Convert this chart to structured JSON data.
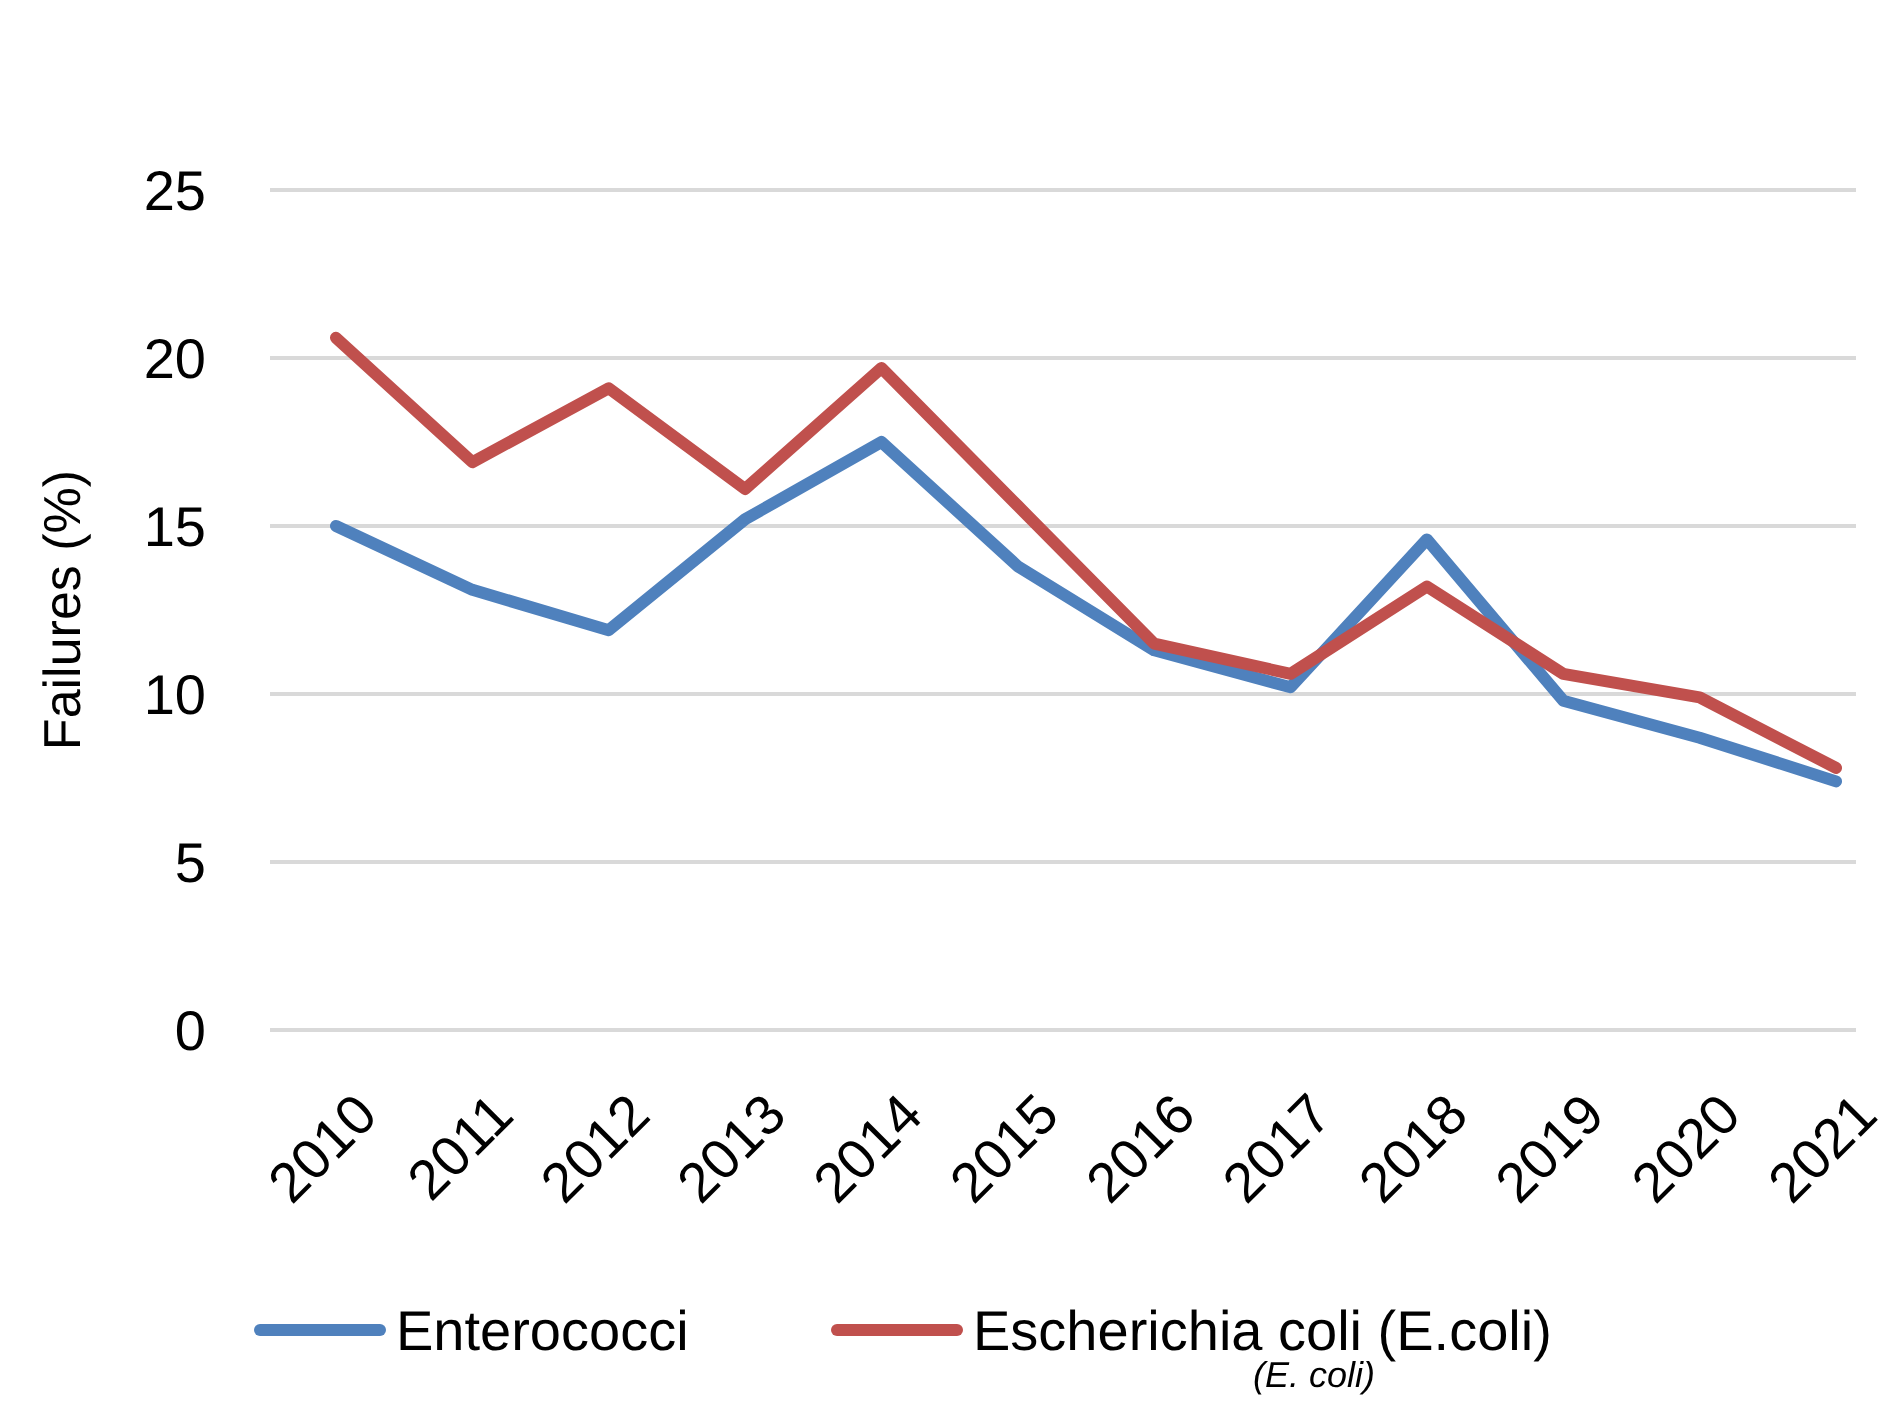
{
  "chart_data": {
    "type": "line",
    "ylabel": "Failures (%)",
    "categories": [
      "2010",
      "2011",
      "2012",
      "2013",
      "2014",
      "2015",
      "2016",
      "2017",
      "2018",
      "2019",
      "2020",
      "2021"
    ],
    "series": [
      {
        "name": "Enterococci",
        "color": "#4f81bd",
        "values": [
          15.0,
          13.1,
          11.9,
          15.2,
          17.5,
          13.8,
          11.3,
          10.2,
          14.6,
          9.8,
          8.7,
          7.4
        ]
      },
      {
        "name": "Escherichia coli (E.coli)",
        "color": "#c0504d",
        "values": [
          20.6,
          16.9,
          19.1,
          16.1,
          19.7,
          15.6,
          11.5,
          10.6,
          13.2,
          10.6,
          9.9,
          7.8
        ]
      }
    ],
    "ylim": [
      0,
      25
    ],
    "yticks": [
      0,
      5,
      10,
      15,
      20,
      25
    ],
    "grid": "y",
    "legend": "bottom",
    "line_style": "solid",
    "marker": "none",
    "annotations": [
      "(E. coli)"
    ]
  }
}
